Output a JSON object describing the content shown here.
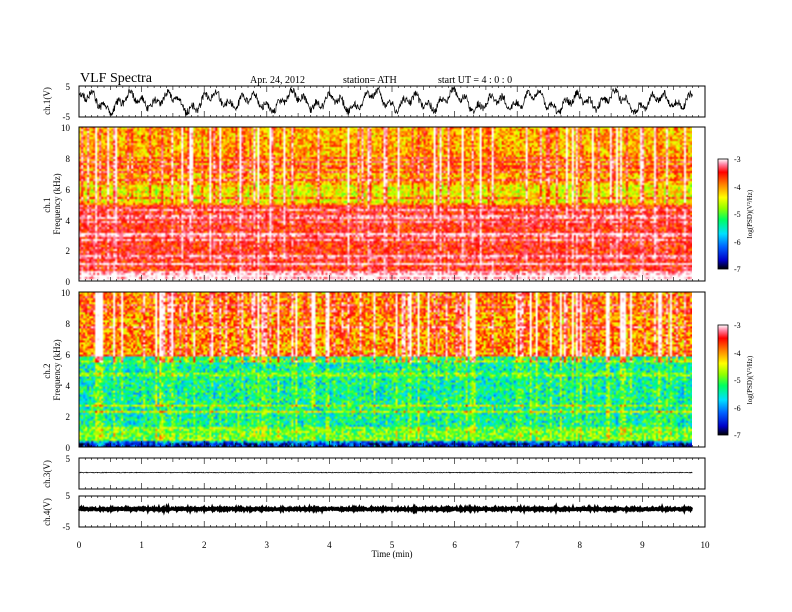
{
  "header": {
    "title": "VLF  Spectra",
    "date": "Apr. 24, 2012",
    "station": "station= ATH",
    "start_ut": "start  UT  =   4  : 0  : 0"
  },
  "chart_data": [
    {
      "type": "line",
      "panel": "ch1-waveform",
      "ylabel": "ch.1(V)",
      "ylim": [
        -5,
        5
      ],
      "y_ticks": [
        "5",
        "-5"
      ],
      "xlim": [
        0,
        10
      ],
      "data_extent_min": [
        0,
        9.8
      ],
      "series": [
        {
          "values_range_volts": [
            -4.5,
            4.5
          ]
        }
      ]
    },
    {
      "type": "heatmap",
      "panel": "ch1-spectrogram",
      "ylabel": "ch.1\nFrequency  (kHz)",
      "ylim": [
        0,
        10
      ],
      "y_ticks": [
        "0",
        "2",
        "4",
        "6",
        "8",
        "10"
      ],
      "xlim": [
        0,
        10
      ],
      "data_extent_min": [
        0,
        9.8
      ],
      "colorbar": {
        "label": "log(PSD)(V²/Hz)",
        "range": [
          -7,
          -3
        ],
        "ticks": [
          "-3",
          "-4",
          "-5",
          "-6",
          "-7"
        ]
      }
    },
    {
      "type": "heatmap",
      "panel": "ch2-spectrogram",
      "ylabel": "ch.2\nFrequency  (kHz)",
      "ylim": [
        0,
        10
      ],
      "y_ticks": [
        "0",
        "2",
        "4",
        "6",
        "8",
        "10"
      ],
      "xlim": [
        0,
        10
      ],
      "data_extent_min": [
        0,
        9.8
      ],
      "colorbar": {
        "label": "log(PSD)(V²/Hz)",
        "range": [
          -7,
          -3
        ],
        "ticks": [
          "-3",
          "-4",
          "-5",
          "-6",
          "-7"
        ]
      }
    },
    {
      "type": "line",
      "panel": "ch3-waveform",
      "ylabel": "ch.3(V)",
      "ylim": [
        -5,
        5
      ],
      "y_ticks": [
        "5"
      ],
      "xlim": [
        0,
        10
      ],
      "data_extent_min": [
        0,
        9.8
      ],
      "series": [
        {
          "level_volts": 0
        }
      ]
    },
    {
      "type": "line",
      "panel": "ch4-waveform",
      "ylabel": "ch.4(V)",
      "ylim": [
        -5,
        5
      ],
      "y_ticks": [
        "5",
        "-5"
      ],
      "xlim": [
        0,
        10
      ],
      "data_extent_min": [
        0,
        9.8
      ],
      "series": [
        {
          "level_volts": 0
        }
      ]
    }
  ],
  "x_axis": {
    "label": "Time  (min)",
    "ticks": [
      "0",
      "1",
      "2",
      "3",
      "4",
      "5",
      "6",
      "7",
      "8",
      "9",
      "10"
    ]
  },
  "colors": {
    "colormap": [
      "#000000",
      "#0000c8",
      "#0060ff",
      "#00e0ff",
      "#00ff60",
      "#90ff00",
      "#ffff00",
      "#ff8000",
      "#ff0000",
      "#ff80a0",
      "#ffffff"
    ]
  }
}
